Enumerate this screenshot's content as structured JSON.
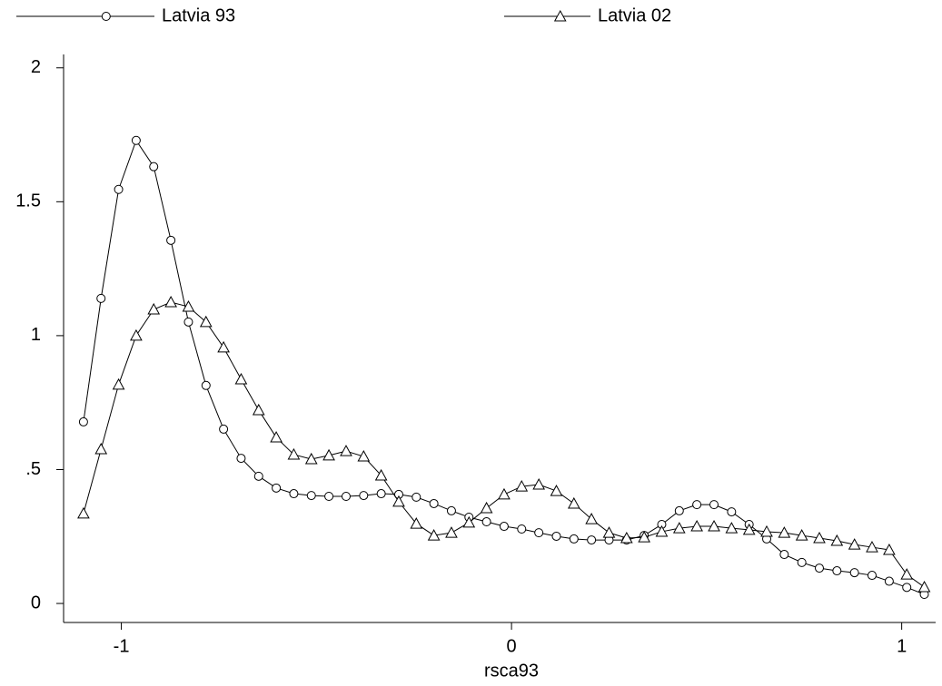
{
  "chart_data": {
    "type": "line",
    "x_label": "rsca93",
    "x": [
      -1.097,
      -1.052,
      -1.007,
      -0.962,
      -0.917,
      -0.873,
      -0.828,
      -0.783,
      -0.738,
      -0.693,
      -0.648,
      -0.603,
      -0.558,
      -0.513,
      -0.468,
      -0.424,
      -0.379,
      -0.334,
      -0.289,
      -0.244,
      -0.199,
      -0.154,
      -0.109,
      -0.064,
      -0.019,
      0.026,
      0.07,
      0.115,
      0.16,
      0.205,
      0.25,
      0.295,
      0.34,
      0.385,
      0.43,
      0.475,
      0.519,
      0.564,
      0.609,
      0.654,
      0.699,
      0.744,
      0.789,
      0.834,
      0.879,
      0.924,
      0.968,
      1.013,
      1.058
    ],
    "series": [
      {
        "name": "Latvia 93",
        "color": "#000000",
        "marker": "circle",
        "values": [
          0.678,
          1.139,
          1.546,
          1.729,
          1.631,
          1.356,
          1.051,
          0.814,
          0.651,
          0.542,
          0.475,
          0.431,
          0.41,
          0.403,
          0.4,
          0.4,
          0.403,
          0.41,
          0.407,
          0.397,
          0.373,
          0.346,
          0.322,
          0.305,
          0.288,
          0.278,
          0.264,
          0.251,
          0.241,
          0.237,
          0.237,
          0.237,
          0.254,
          0.295,
          0.346,
          0.369,
          0.369,
          0.342,
          0.295,
          0.241,
          0.183,
          0.153,
          0.132,
          0.122,
          0.115,
          0.105,
          0.083,
          0.06,
          0.034
        ]
      },
      {
        "name": "Latvia 02",
        "color": "#000000",
        "marker": "triangle",
        "values": [
          0.336,
          0.576,
          0.817,
          1.0,
          1.098,
          1.125,
          1.108,
          1.051,
          0.956,
          0.837,
          0.722,
          0.62,
          0.556,
          0.539,
          0.553,
          0.569,
          0.549,
          0.478,
          0.38,
          0.298,
          0.254,
          0.264,
          0.302,
          0.356,
          0.407,
          0.437,
          0.444,
          0.42,
          0.373,
          0.315,
          0.264,
          0.244,
          0.247,
          0.268,
          0.281,
          0.288,
          0.288,
          0.281,
          0.275,
          0.268,
          0.264,
          0.254,
          0.244,
          0.234,
          0.22,
          0.21,
          0.2,
          0.108,
          0.061
        ]
      }
    ],
    "xlim": [
      -1.148,
      1.087
    ],
    "ylim": [
      -0.071,
      2.05
    ],
    "xticks": [
      -1,
      0,
      1
    ],
    "yticks": [
      0,
      {
        "value": 0.5,
        "label": ".5"
      },
      1,
      1.5,
      2
    ],
    "grid": false,
    "legend": "top"
  }
}
